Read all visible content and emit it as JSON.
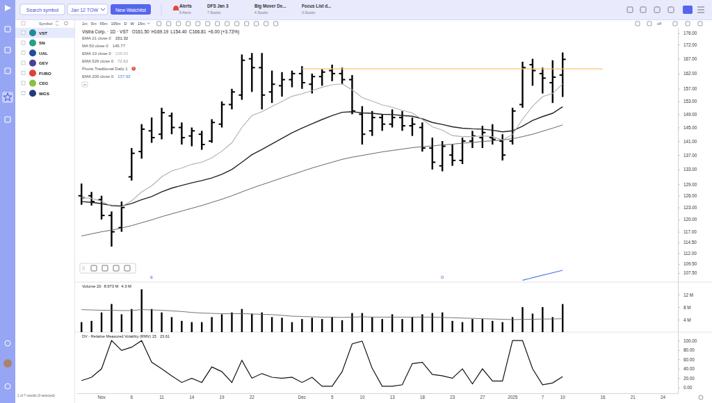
{
  "app": {
    "topbar": {
      "search": "Search symbol",
      "watchlist": "Jan 12 TOW",
      "new_watchlist": "New Watchlist",
      "tabs": [
        {
          "title": "Alerts",
          "subtitle": "8 Alerts"
        },
        {
          "title": "DFS Jan 3",
          "subtitle": "7 Stocks"
        },
        {
          "title": "Big Mover De...",
          "subtitle": "4 Stocks"
        },
        {
          "title": "Focus List d...",
          "subtitle": "3 Stocks"
        }
      ]
    },
    "watchlist": {
      "header": "Symbol",
      "rows": [
        "VST",
        "SN",
        "UAL",
        "GEV",
        "FUBO",
        "CEG",
        "WGS"
      ],
      "selected": "VST",
      "footer": "1 of 7 results (0 selected)"
    },
    "chart_toolbar": {
      "intervals": [
        "1m",
        "5m",
        "65m",
        "195m",
        "D",
        "W",
        "15m"
      ],
      "layout_toggle": "off"
    }
  },
  "chart_data": [
    {
      "type": "ohlc",
      "title": "Vistra Corp. · 1D · VST",
      "quote": [
        "O161.50",
        "H169.19",
        "L154.40",
        "C166.81",
        "+6.00 (+3.73%)"
      ],
      "log": true,
      "grid": false,
      "legend": "top-left",
      "tick_labels": "y",
      "categories": [
        null,
        null,
        "Nov",
        null,
        null,
        "6",
        null,
        null,
        "11",
        null,
        null,
        "14",
        null,
        null,
        "19",
        null,
        null,
        "22",
        null,
        null,
        null,
        null,
        "Dec",
        null,
        null,
        "5",
        null,
        null,
        "10",
        null,
        null,
        "13",
        null,
        null,
        "18",
        null,
        null,
        "23",
        null,
        null,
        "27",
        null,
        null,
        "2025",
        null,
        null,
        "7",
        null,
        "10",
        null,
        null,
        null,
        "16",
        null,
        null,
        "21",
        null,
        null,
        "24",
        null
      ],
      "ylim": [
        105.5,
        178
      ],
      "yticks": [
        {
          "value": 176,
          "label": "176.00"
        },
        {
          "value": 172,
          "label": "172.00"
        },
        {
          "value": 167,
          "label": "167.00"
        },
        {
          "value": 162,
          "label": "162.00"
        },
        {
          "value": 157,
          "label": "157.00"
        },
        {
          "value": 153,
          "label": "153.00"
        },
        {
          "value": 149,
          "label": "149.00"
        },
        {
          "value": 145,
          "label": "145.00"
        },
        {
          "value": 141,
          "label": "141.00"
        },
        {
          "value": 137,
          "label": "137.00"
        },
        {
          "value": 133,
          "label": "133.00"
        },
        {
          "value": 129,
          "label": "129.00"
        },
        {
          "value": 126,
          "label": "126.00"
        },
        {
          "value": 123,
          "label": "123.00"
        },
        {
          "value": 120,
          "label": "120.00"
        },
        {
          "value": 117,
          "label": "117.00"
        },
        {
          "value": 114.5,
          "label": "114.50"
        },
        {
          "value": 112,
          "label": "112.00"
        },
        {
          "value": 109.5,
          "label": "109.50"
        },
        {
          "value": 107.5,
          "label": "107.50"
        }
      ],
      "series": [
        {
          "name": "VST",
          "type": "ohlc",
          "color": "#000000",
          "open": [
            126,
            126,
            125,
            121,
            118,
            131,
            138,
            144,
            143,
            148.5,
            145,
            142.5,
            143,
            141,
            146,
            152,
            155,
            167,
            164,
            156,
            158,
            160,
            162,
            158.5,
            161,
            163,
            162,
            160,
            149,
            144,
            148,
            146,
            148,
            145.5,
            145,
            139,
            134,
            137,
            135.5,
            141,
            142,
            142,
            141,
            141,
            152,
            165,
            162,
            159,
            161.5,
            null,
            null,
            null,
            null,
            null,
            null,
            null,
            null,
            null,
            null,
            null
          ],
          "high": [
            129.2,
            127,
            126,
            122,
            124.5,
            139,
            146,
            148,
            151,
            149.5,
            146.5,
            145,
            144,
            147.5,
            153,
            157,
            168.5,
            169,
            169,
            163,
            162.5,
            163,
            164.5,
            162,
            163.5,
            165,
            164,
            161.5,
            151.5,
            150,
            149,
            150.5,
            150,
            148,
            146.5,
            142,
            141,
            140,
            142,
            144,
            145.5,
            146,
            143,
            151,
            166,
            167,
            164,
            166.5,
            169.19,
            null,
            null,
            null,
            null,
            null,
            null,
            null,
            null,
            null,
            null,
            null
          ],
          "low": [
            123.7,
            123.5,
            120,
            113.5,
            117,
            130,
            136,
            140.5,
            141.5,
            143,
            140,
            139.5,
            138.5,
            140.5,
            145,
            150.5,
            153.5,
            156,
            150.5,
            152.5,
            154.5,
            157.5,
            157,
            155.5,
            158,
            159.5,
            158.5,
            149,
            140,
            142.5,
            144,
            145,
            144,
            142.5,
            138,
            133,
            132.5,
            134,
            134.5,
            139,
            139,
            140,
            135.5,
            140,
            151,
            158,
            155.5,
            152.5,
            154.4,
            null,
            null,
            null,
            null,
            null,
            null,
            null,
            null,
            null,
            null,
            null
          ],
          "close": [
            125.5,
            124.5,
            121,
            117,
            123,
            137.5,
            144.5,
            142,
            149.5,
            145,
            142,
            144,
            140,
            146.5,
            152,
            156,
            166.5,
            164,
            155,
            158.5,
            160,
            162,
            159,
            161,
            162.5,
            162,
            160,
            150,
            143,
            148,
            146,
            148,
            145.5,
            146,
            139,
            135,
            139.5,
            135.5,
            141,
            142.5,
            143.5,
            141.5,
            137,
            150,
            164,
            163,
            160.5,
            160.81,
            166.81,
            null,
            null,
            null,
            null,
            null,
            null,
            null,
            null,
            null,
            null,
            null
          ]
        },
        {
          "name": "EMA 21 close 0",
          "type": "line",
          "color": "#222222",
          "values": [
            124.5,
            124.3,
            124,
            123.5,
            123.4,
            124,
            125,
            125.8,
            127,
            128,
            128.7,
            129.4,
            130,
            130.7,
            131.7,
            133,
            135,
            137.1,
            138.6,
            140.2,
            141.8,
            143.4,
            144.8,
            146.1,
            147.4,
            148.6,
            149.6,
            149.8,
            149.4,
            149.3,
            149,
            148.9,
            148.6,
            148.4,
            147.6,
            146.5,
            145.9,
            145.2,
            144.8,
            144.6,
            144.5,
            144.2,
            143.7,
            144,
            145.4,
            147.1,
            148.3,
            149.3,
            151.32,
            null,
            null,
            null,
            null,
            null,
            null,
            null,
            null,
            null,
            null,
            null
          ]
        },
        {
          "name": "MA 50 close 0",
          "type": "line",
          "color": "#555555",
          "values": [
            116,
            116.5,
            117,
            117.4,
            117.9,
            118.5,
            119.2,
            119.9,
            120.7,
            121.4,
            122.1,
            122.8,
            123.5,
            124.3,
            125.1,
            126,
            127,
            128,
            128.9,
            129.8,
            130.7,
            131.6,
            132.5,
            133.4,
            134.2,
            135,
            135.8,
            136.4,
            136.9,
            137.4,
            137.9,
            138.3,
            138.7,
            139.1,
            139.4,
            139.6,
            139.9,
            140.1,
            140.4,
            140.6,
            140.9,
            141.1,
            141.3,
            141.7,
            142.3,
            143,
            143.9,
            144.8,
            145.77,
            null,
            null,
            null,
            null,
            null,
            null,
            null,
            null,
            null,
            null,
            null
          ]
        },
        {
          "name": "EMA 10 close 0",
          "type": "line",
          "color": "#b0b0b0",
          "values": [
            125.5,
            125.3,
            124.6,
            123.3,
            123.2,
            124.7,
            127,
            128.6,
            131,
            132.6,
            133.4,
            134.4,
            135,
            136.2,
            138.1,
            140.5,
            145,
            148.6,
            149.8,
            151.4,
            153,
            154.6,
            155.4,
            156.4,
            157.5,
            158.3,
            158.6,
            156.7,
            154.2,
            153.1,
            151.9,
            151.2,
            150.2,
            149.4,
            147.4,
            145.2,
            144.2,
            142.6,
            142.3,
            142.3,
            142.5,
            142.3,
            141.3,
            142.9,
            147.5,
            151.5,
            154.5,
            155.5,
            158.63,
            null,
            null,
            null,
            null,
            null,
            null,
            null,
            null,
            null,
            null,
            null
          ]
        }
      ],
      "studies": [
        {
          "name": "EMA 526 close 0",
          "last": 72.62,
          "color": "#8c8c8c"
        },
        {
          "name": "Pivots Traditional Daily 1",
          "color": "#e0483f"
        },
        {
          "name": "EMA 200 close 0",
          "last": 137.92,
          "color": "#3d7be0"
        }
      ],
      "annotations": [
        {
          "type": "hline",
          "value": 163.6,
          "start": 22,
          "end": 52,
          "color": "#f5c46b"
        },
        {
          "type": "segment",
          "start": 44,
          "end": 48,
          "values": [
            105.9,
            108.1
          ],
          "color": "#4a72e8"
        }
      ],
      "events": [
        {
          "index": 7,
          "label": "E"
        },
        {
          "index": 36,
          "label": "D"
        }
      ]
    },
    {
      "type": "bar",
      "title": "Volume 20",
      "grid": false,
      "tick_labels": "y",
      "categories": [
        null,
        null,
        "Nov",
        null,
        null,
        "6",
        null,
        null,
        "11",
        null,
        null,
        "14",
        null,
        null,
        "19",
        null,
        null,
        "22",
        null,
        null,
        null,
        null,
        "Dec",
        null,
        null,
        "5",
        null,
        null,
        "10",
        null,
        null,
        "13",
        null,
        null,
        "18",
        null,
        null,
        "23",
        null,
        null,
        "27",
        null,
        null,
        "2025",
        null,
        null,
        "7",
        null,
        "10",
        null,
        null,
        null,
        "16",
        null,
        null,
        "21",
        null,
        null,
        "24",
        null
      ],
      "ylim": [
        0,
        16
      ],
      "yticks": [
        {
          "value": 4,
          "label": "4 M"
        },
        {
          "value": 8,
          "label": "8 M"
        },
        {
          "value": 12,
          "label": "12 M"
        }
      ],
      "series": [
        {
          "type": "bar",
          "color": "#000000",
          "last_label": "8.973 M",
          "values": [
            3.2,
            3.6,
            6.3,
            9,
            5.7,
            7.4,
            13.7,
            7.4,
            6.3,
            4.8,
            3.6,
            3.2,
            3.2,
            4.8,
            5.7,
            6.3,
            7.4,
            5.9,
            6.3,
            4.8,
            4.6,
            3.2,
            4.2,
            4.6,
            4.2,
            4.8,
            3.8,
            6.1,
            6.1,
            4.8,
            4.2,
            5.7,
            4.2,
            4.8,
            5.7,
            6.1,
            6.3,
            3.6,
            3.2,
            4.2,
            4.2,
            3.6,
            3.2,
            4.8,
            8,
            5.9,
            8,
            4.8,
            8.973,
            null,
            null,
            null,
            null,
            null,
            null,
            null,
            null,
            null,
            null,
            null
          ]
        },
        {
          "type": "line",
          "color": "#666666",
          "last_label": "4.3 M",
          "values": [
            7.2,
            7.1,
            7,
            7,
            6.9,
            6.9,
            7.2,
            7.1,
            7,
            6.8,
            6.6,
            6.3,
            6.1,
            6,
            5.9,
            5.9,
            5.9,
            5.8,
            5.7,
            5.6,
            5.4,
            5.1,
            5,
            4.9,
            4.8,
            4.8,
            4.7,
            4.8,
            4.9,
            4.8,
            4.8,
            4.8,
            4.8,
            4.8,
            4.8,
            4.8,
            4.7,
            4.6,
            4.5,
            4.4,
            4.3,
            4.2,
            4.1,
            4,
            4.1,
            4.1,
            4.2,
            4.2,
            4.3,
            null,
            null,
            null,
            null,
            null,
            null,
            null,
            null,
            null,
            null,
            null
          ]
        }
      ]
    },
    {
      "type": "line",
      "title": "DV - Relative Measured Volatility (RMV) 15",
      "grid": false,
      "categories": [
        null,
        null,
        "Nov",
        null,
        null,
        "6",
        null,
        null,
        "11",
        null,
        null,
        "14",
        null,
        null,
        "19",
        null,
        null,
        "22",
        null,
        null,
        null,
        null,
        "Dec",
        null,
        null,
        "5",
        null,
        null,
        "10",
        null,
        null,
        "13",
        null,
        null,
        "18",
        null,
        null,
        "23",
        null,
        null,
        "27",
        null,
        null,
        "2025",
        null,
        null,
        "7",
        null,
        "10",
        null,
        null,
        null,
        "16",
        null,
        null,
        "21",
        null,
        null,
        "24",
        null
      ],
      "ylim": [
        -12,
        118
      ],
      "yticks": [
        {
          "value": 0,
          "label": "0.00"
        },
        {
          "value": 20,
          "label": "20.00"
        },
        {
          "value": 40,
          "label": "40.00"
        },
        {
          "value": 60,
          "label": "60.00"
        },
        {
          "value": 80,
          "label": "80.00"
        },
        {
          "value": 100,
          "label": "100.00"
        }
      ],
      "series": [
        {
          "type": "line",
          "color": "#111111",
          "values": [
            15,
            22,
            40,
            100,
            79,
            86,
            100,
            54,
            40,
            25,
            11,
            20,
            11,
            44,
            34,
            11,
            58,
            20,
            30,
            22,
            20,
            22,
            11,
            22,
            3,
            3,
            34,
            93,
            99,
            41,
            3,
            3,
            6,
            51,
            54,
            28,
            25,
            20,
            40,
            8,
            40,
            14,
            14,
            100,
            100,
            40,
            6,
            10,
            23.61,
            null,
            null,
            null,
            null,
            null,
            null,
            null,
            null,
            null,
            null,
            null
          ]
        }
      ]
    }
  ]
}
